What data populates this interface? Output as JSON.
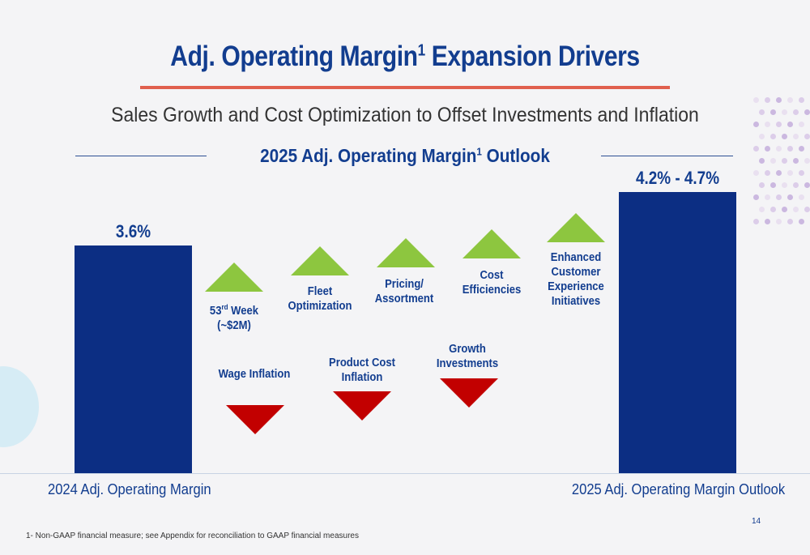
{
  "slide": {
    "title_main": "Adj. Operating Margin",
    "title_sup": "1",
    "title_rest": " Expansion Drivers",
    "subtitle": "Sales Growth and Cost Optimization to Offset Investments and Inflation",
    "chart_title_main": "2025 Adj. Operating Margin",
    "chart_title_sup": "1",
    "chart_title_rest": " Outlook",
    "footnote": "1- Non-GAAP financial measure; see Appendix for reconciliation to GAAP financial measures",
    "page_number": "14"
  },
  "colors": {
    "bar": "#0c2e83",
    "increase": "#8dc63f",
    "decrease": "#c20000",
    "title": "#123d8f",
    "rule": "#e0604e"
  },
  "chart_data": {
    "type": "bar",
    "title": "2025 Adj. Operating Margin1 Outlook",
    "unit": "%",
    "categories": [
      "2024 Adj. Operating Margin",
      "2025 Adj. Operating Margin Outlook"
    ],
    "values": [
      3.6,
      4.45
    ],
    "value_labels": [
      "3.6%",
      "4.2% - 4.7%"
    ],
    "range": [
      4.2,
      4.7
    ],
    "drivers": [
      {
        "label_parts": [
          "53",
          "rd",
          " Week"
        ],
        "label_line2": "(~$2M)",
        "direction": "up"
      },
      {
        "label": "Wage Inflation",
        "direction": "down"
      },
      {
        "label": "Fleet Optimization",
        "direction": "up"
      },
      {
        "label": "Product Cost Inflation",
        "direction": "down"
      },
      {
        "label": "Pricing/ Assortment",
        "direction": "up"
      },
      {
        "label": "Growth Investments",
        "direction": "down"
      },
      {
        "label": "Cost Efficiencies",
        "direction": "up"
      },
      {
        "label": "Enhanced Customer Experience Initiatives",
        "direction": "up"
      }
    ]
  }
}
